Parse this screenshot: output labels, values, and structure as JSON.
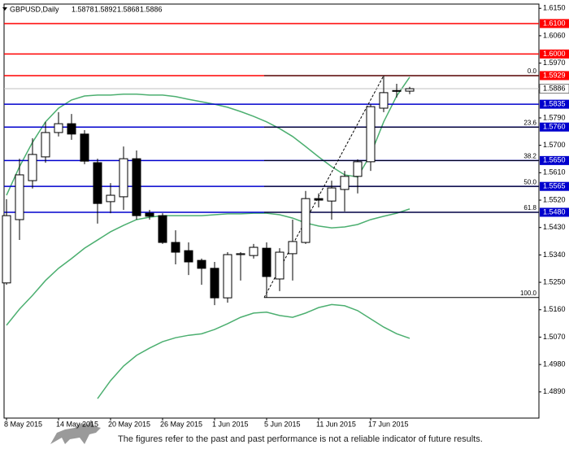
{
  "chart_data": {
    "type": "candlestick",
    "title": "GBPUSD,Daily",
    "x": [
      "8 May 2015",
      null,
      null,
      null,
      "14 May 2015",
      null,
      null,
      null,
      "20 May 2015",
      null,
      null,
      null,
      "26 May 2015",
      null,
      null,
      null,
      "1 Jun 2015",
      null,
      null,
      null,
      "5 Jun 2015",
      null,
      null,
      null,
      "11 Jun 2015",
      null,
      null,
      null,
      "17 Jun 2015",
      null,
      null,
      null
    ],
    "open": [
      1.5248,
      1.5456,
      1.5584,
      1.5662,
      1.5742,
      1.5771,
      1.5737,
      1.5643,
      1.5515,
      1.5531,
      1.5656,
      1.5477,
      1.5469,
      1.5381,
      1.5354,
      1.5322,
      1.5296,
      1.5199,
      1.5341,
      1.5338,
      1.5362,
      1.5261,
      1.5344,
      1.5381,
      1.5525,
      1.5517,
      1.5555,
      1.5598,
      1.5646,
      1.5822,
      1.5878,
      1.5878
    ],
    "high": [
      1.5523,
      1.5656,
      1.5723,
      1.5777,
      1.5809,
      1.5803,
      1.575,
      1.5656,
      1.5576,
      1.5696,
      1.5683,
      1.5488,
      1.5477,
      1.5421,
      1.5381,
      1.5328,
      1.5317,
      1.5349,
      1.5349,
      1.5376,
      1.5381,
      1.5362,
      1.5456,
      1.555,
      1.5542,
      1.5584,
      1.5616,
      1.5654,
      1.5835,
      1.5929,
      1.5902,
      1.5892
    ],
    "low": [
      1.5242,
      1.5389,
      1.5558,
      1.5643,
      1.5729,
      1.5718,
      1.5638,
      1.5443,
      1.5477,
      1.5488,
      1.5456,
      1.5456,
      1.5376,
      1.5309,
      1.5274,
      1.5242,
      1.5175,
      1.5183,
      1.5256,
      1.5328,
      1.52,
      1.5221,
      1.5256,
      1.5376,
      1.5496,
      1.5456,
      1.5483,
      1.5542,
      1.5616,
      1.5809,
      1.5857,
      1.5868
    ],
    "close": [
      1.5469,
      1.5603,
      1.567,
      1.5742,
      1.5771,
      1.5737,
      1.5648,
      1.5509,
      1.5536,
      1.5656,
      1.5469,
      1.5467,
      1.5381,
      1.5349,
      1.5317,
      1.5296,
      1.5199,
      1.5341,
      1.5344,
      1.5365,
      1.5269,
      1.5349,
      1.5384,
      1.5525,
      1.552,
      1.556,
      1.5598,
      1.5646,
      1.5827,
      1.5873,
      1.588,
      1.5886
    ],
    "ylim": [
      1.4804,
      1.6164
    ],
    "yticks": [
      {
        "value": 1.615,
        "label": "1.6150"
      },
      {
        "value": 1.606,
        "label": "1.6060"
      },
      {
        "value": 1.597,
        "label": "1.5970"
      },
      {
        "value": 1.579,
        "label": "1.5790"
      },
      {
        "value": 1.57,
        "label": "1.5700"
      },
      {
        "value": 1.561,
        "label": "1.5610"
      },
      {
        "value": 1.552,
        "label": "1.5520"
      },
      {
        "value": 1.543,
        "label": "1.5430"
      },
      {
        "value": 1.534,
        "label": "1.5340"
      },
      {
        "value": 1.525,
        "label": "1.5250"
      },
      {
        "value": 1.516,
        "label": "1.5160"
      },
      {
        "value": 1.507,
        "label": "1.5070"
      },
      {
        "value": 1.498,
        "label": "1.4980"
      },
      {
        "value": 1.489,
        "label": "1.4890"
      }
    ],
    "bands": [
      {
        "color": "#4caf70",
        "values": [
          1.5536,
          1.563,
          1.571,
          1.5777,
          1.5822,
          1.5849,
          1.5862,
          1.5865,
          1.5865,
          1.5868,
          1.5868,
          1.5865,
          1.5865,
          1.586,
          1.5851,
          1.5843,
          1.5835,
          1.5825,
          1.5811,
          1.5795,
          1.5777,
          1.5755,
          1.5729,
          1.5696,
          1.5662,
          1.563,
          1.5603,
          1.5596,
          1.567,
          1.5777,
          1.5862,
          1.5924
        ]
      },
      {
        "color": "#4caf70",
        "values": [
          1.5109,
          1.5162,
          1.5207,
          1.5256,
          1.5296,
          1.5328,
          1.5362,
          1.5389,
          1.5416,
          1.5437,
          1.5456,
          1.5464,
          1.5469,
          1.5469,
          1.5469,
          1.5469,
          1.5472,
          1.5475,
          1.5475,
          1.5477,
          1.5477,
          1.5472,
          1.5461,
          1.5445,
          1.5435,
          1.5429,
          1.5432,
          1.544,
          1.5456,
          1.5467,
          1.5477,
          1.5491
        ]
      },
      {
        "color": "#4caf70",
        "values": [
          null,
          null,
          null,
          null,
          null,
          null,
          null,
          1.4868,
          1.4927,
          1.4975,
          1.501,
          1.5034,
          1.5055,
          1.5068,
          1.5076,
          1.5081,
          1.5095,
          1.5114,
          1.5135,
          1.5149,
          1.5152,
          1.5141,
          1.5135,
          1.5149,
          1.5167,
          1.5177,
          1.5173,
          1.5157,
          1.513,
          1.5103,
          1.5081,
          1.5066
        ]
      }
    ],
    "levels": [
      {
        "value": 1.61,
        "label": "1.6100",
        "color": "#ff0000"
      },
      {
        "value": 1.6,
        "label": "1.6000",
        "color": "#ff0000"
      },
      {
        "value": 1.5929,
        "label": "1.5929",
        "color": "#ff0000"
      },
      {
        "value": 1.5835,
        "label": "1.5835",
        "color": "#0000cd"
      },
      {
        "value": 1.576,
        "label": "1.5760",
        "color": "#0000cd"
      },
      {
        "value": 1.565,
        "label": "1.5650",
        "color": "#0000cd"
      },
      {
        "value": 1.5565,
        "label": "1.5565",
        "color": "#0000cd"
      },
      {
        "value": 1.548,
        "label": "1.5480",
        "color": "#0000cd"
      }
    ],
    "fibonacci": [
      {
        "ratio": {
          "value": 0,
          "label": "0.0"
        },
        "price": 1.5929
      },
      {
        "ratio": 23.6,
        "price": 1.576
      },
      {
        "ratio": 38.2,
        "price": 1.565
      },
      {
        "ratio": {
          "value": 50,
          "label": "50.0"
        },
        "price": 1.5565
      },
      {
        "ratio": 61.8,
        "price": 1.548
      },
      {
        "ratio": {
          "value": 100,
          "label": "100.0"
        },
        "price": 1.52
      }
    ]
  },
  "footer": {
    "disclaimer": "The figures refer to the past and past performance is not a reliable indicator of future results."
  }
}
